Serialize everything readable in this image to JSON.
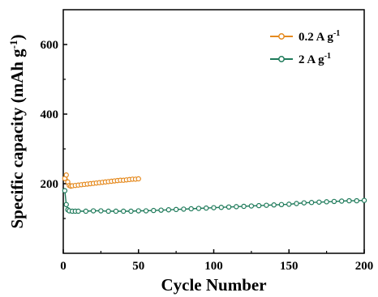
{
  "chart_data": {
    "type": "scatter",
    "xlabel": "Cycle Number",
    "ylabel_main": "Specific capacity (mAh g",
    "ylabel_sup": "-1",
    "ylabel_end": ")",
    "xlim": [
      0,
      200
    ],
    "ylim": [
      0,
      700
    ],
    "x_ticks": [
      0,
      50,
      100,
      150,
      200
    ],
    "x_tick_labels": [
      "0",
      "50",
      "100",
      "150",
      "200"
    ],
    "y_ticks": [
      200,
      400,
      600
    ],
    "y_tick_labels": [
      "200",
      "400",
      "600"
    ],
    "grid": false,
    "legend_position": "top-right",
    "series": [
      {
        "name": "0.2 A g",
        "name_sup": "-1",
        "color": "#E58A1F",
        "x": [
          1,
          2,
          3,
          4,
          5,
          6,
          8,
          10,
          12,
          14,
          16,
          18,
          20,
          22,
          24,
          26,
          28,
          30,
          32,
          34,
          36,
          38,
          40,
          42,
          44,
          46,
          48,
          50
        ],
        "y": [
          215,
          225,
          205,
          195,
          193,
          194,
          195,
          196,
          197,
          198,
          199,
          200,
          201,
          202,
          203,
          204,
          205,
          206,
          207,
          208,
          209,
          210,
          210,
          211,
          212,
          213,
          213,
          214
        ]
      },
      {
        "name": "2 A g",
        "name_sup": "-1",
        "color": "#1E7A5A",
        "x": [
          1,
          2,
          3,
          4,
          6,
          8,
          10,
          15,
          20,
          25,
          30,
          35,
          40,
          45,
          50,
          55,
          60,
          65,
          70,
          75,
          80,
          85,
          90,
          95,
          100,
          105,
          110,
          115,
          120,
          125,
          130,
          135,
          140,
          145,
          150,
          155,
          160,
          165,
          170,
          175,
          180,
          185,
          190,
          195,
          200
        ],
        "y": [
          180,
          140,
          125,
          122,
          121,
          121,
          121,
          121,
          122,
          122,
          121,
          121,
          121,
          121,
          122,
          122,
          123,
          124,
          125,
          126,
          127,
          128,
          129,
          130,
          131,
          132,
          133,
          134,
          135,
          136,
          137,
          138,
          139,
          140,
          141,
          143,
          145,
          146,
          147,
          148,
          149,
          150,
          151,
          151,
          152
        ]
      }
    ]
  }
}
